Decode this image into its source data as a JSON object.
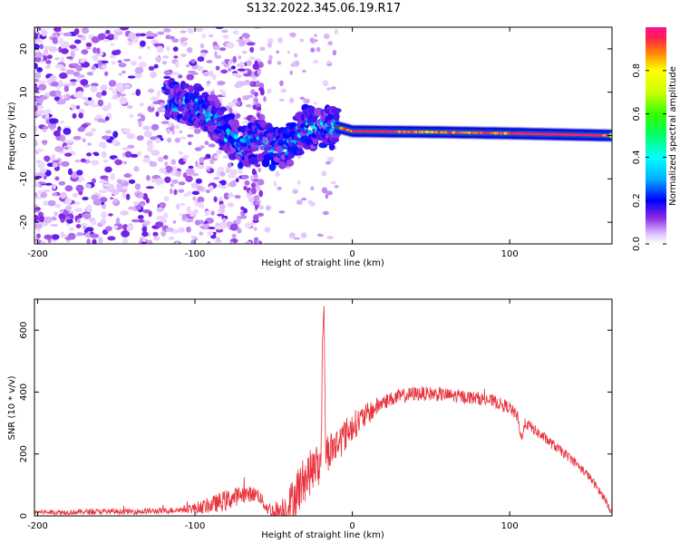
{
  "title": "S132.2022.345.06.19.R17",
  "chart_data": [
    {
      "type": "heatmap",
      "xlabel": "Height of straight line (km)",
      "ylabel": "Frequency (Hz)",
      "xlim": [
        -202,
        165
      ],
      "ylim": [
        -25,
        25
      ],
      "x_ticks": [
        -200,
        -100,
        0,
        100
      ],
      "x_tick_labels": [
        "-200",
        "-100",
        "0",
        "100"
      ],
      "y_ticks": [
        -20,
        -10,
        0,
        10,
        20
      ],
      "y_tick_labels": [
        "-20",
        "-10",
        "0",
        "10",
        "20"
      ],
      "colorbar": {
        "label": "Normalized spectral amplitude",
        "range": [
          0,
          1
        ],
        "ticks": [
          0,
          0.2,
          0.4,
          0.6,
          0.8
        ],
        "tick_labels": [
          "0.0",
          "0.2",
          "0.4",
          "0.6",
          "0.8"
        ],
        "stops": [
          {
            "v": 0.0,
            "color": "#ffffff"
          },
          {
            "v": 0.04,
            "color": "#e6ccff"
          },
          {
            "v": 0.12,
            "color": "#8a2be2"
          },
          {
            "v": 0.2,
            "color": "#0000ff"
          },
          {
            "v": 0.3,
            "color": "#00b0ff"
          },
          {
            "v": 0.4,
            "color": "#00ffff"
          },
          {
            "v": 0.5,
            "color": "#00ff66"
          },
          {
            "v": 0.6,
            "color": "#33ff00"
          },
          {
            "v": 0.7,
            "color": "#ccff00"
          },
          {
            "v": 0.8,
            "color": "#ffff00"
          },
          {
            "v": 0.88,
            "color": "#ff8800"
          },
          {
            "v": 0.95,
            "color": "#ff2050"
          },
          {
            "v": 1.0,
            "color": "#ff1090"
          }
        ]
      },
      "ridge": {
        "description_points": [
          {
            "x": -115,
            "f": 8
          },
          {
            "x": -100,
            "f": 7
          },
          {
            "x": -90,
            "f": 5
          },
          {
            "x": -80,
            "f": 1
          },
          {
            "x": -70,
            "f": -3
          },
          {
            "x": -60,
            "f": -1
          },
          {
            "x": -50,
            "f": -3
          },
          {
            "x": -40,
            "f": -2
          },
          {
            "x": -30,
            "f": 2
          },
          {
            "x": -20,
            "f": 1.5
          },
          {
            "x": -10,
            "f": 2
          },
          {
            "x": 0,
            "f": 1
          },
          {
            "x": 50,
            "f": 0.8
          },
          {
            "x": 100,
            "f": 0.5
          },
          {
            "x": 165,
            "f": 0
          }
        ]
      }
    },
    {
      "type": "line",
      "xlabel": "Height of straight line (km)",
      "ylabel": "SNR (10 * v/v)",
      "xlim": [
        -202,
        165
      ],
      "ylim": [
        0,
        700
      ],
      "x_ticks": [
        -200,
        -100,
        0,
        100
      ],
      "x_tick_labels": [
        "-200",
        "-100",
        "0",
        "100"
      ],
      "y_ticks": [
        0,
        200,
        400,
        600
      ],
      "y_tick_labels": [
        "0",
        "200",
        "400",
        "600"
      ],
      "series": [
        {
          "color": "#e8323c",
          "x": [
            -202,
            -180,
            -160,
            -140,
            -120,
            -110,
            -100,
            -90,
            -80,
            -70,
            -60,
            -55,
            -50,
            -45,
            -40,
            -35,
            -30,
            -25,
            -20,
            -19,
            -18,
            -17,
            -15,
            -10,
            -5,
            0,
            10,
            20,
            30,
            40,
            50,
            60,
            70,
            80,
            90,
            100,
            105,
            107,
            110,
            120,
            130,
            140,
            150,
            160,
            165
          ],
          "y": [
            12,
            12,
            14,
            14,
            16,
            20,
            25,
            35,
            50,
            70,
            70,
            30,
            10,
            15,
            35,
            80,
            120,
            150,
            170,
            560,
            680,
            200,
            210,
            230,
            260,
            290,
            330,
            370,
            385,
            395,
            395,
            390,
            385,
            380,
            370,
            350,
            320,
            250,
            300,
            260,
            220,
            180,
            130,
            60,
            10
          ]
        }
      ],
      "noise_amplitude": [
        {
          "x": -202,
          "a": 8
        },
        {
          "x": -110,
          "a": 10
        },
        {
          "x": -80,
          "a": 35
        },
        {
          "x": -55,
          "a": 20
        },
        {
          "x": -35,
          "a": 80
        },
        {
          "x": -10,
          "a": 60
        },
        {
          "x": 20,
          "a": 25
        },
        {
          "x": 100,
          "a": 20
        },
        {
          "x": 165,
          "a": 12
        }
      ]
    }
  ]
}
